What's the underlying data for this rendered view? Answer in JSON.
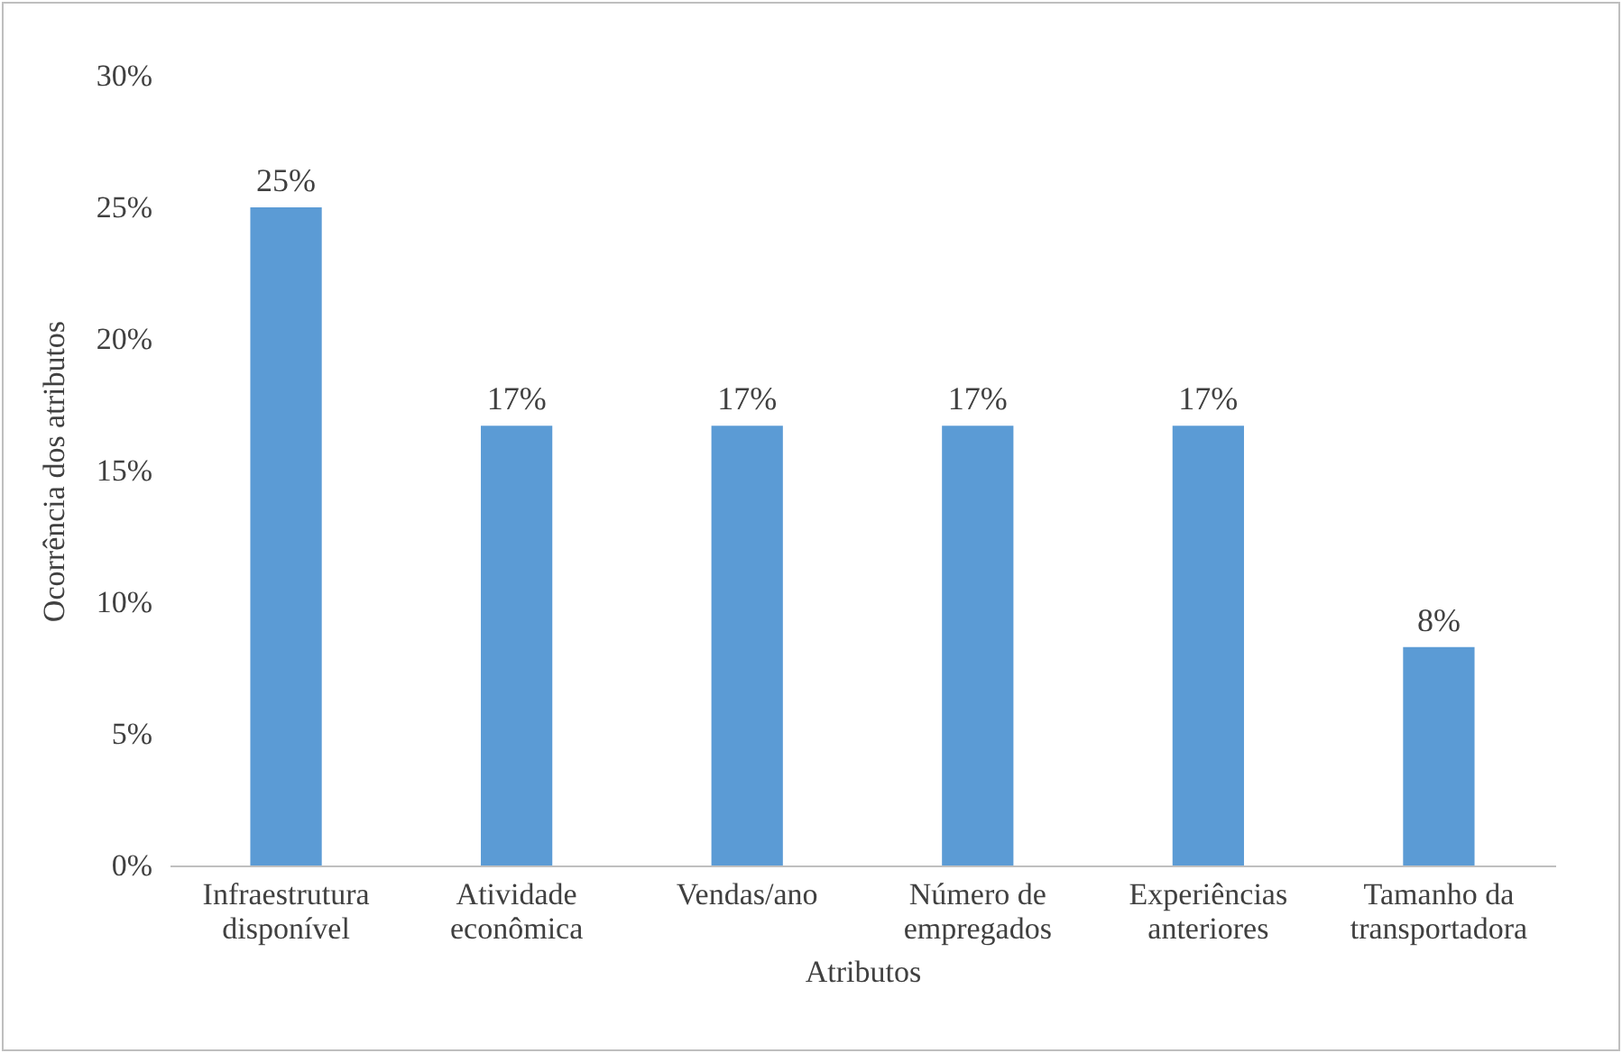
{
  "chart_data": {
    "type": "bar",
    "xlabel": "Atributos",
    "ylabel": "Ocorrência dos atributos",
    "categories": [
      "Infraestrutura disponível",
      "Atividade econômica",
      "Vendas/ano",
      "Número de empregados",
      "Experiências anteriores",
      "Tamanho da transportadora"
    ],
    "values": [
      25,
      16.7,
      16.7,
      16.7,
      16.7,
      8.3
    ],
    "value_labels": [
      "25%",
      "17%",
      "17%",
      "17%",
      "17%",
      "8%"
    ],
    "color": "#5b9bd5",
    "ylim": [
      0,
      30
    ],
    "yticks": [
      {
        "value": 0,
        "label": "0%"
      },
      {
        "value": 5,
        "label": "5%"
      },
      {
        "value": 10,
        "label": "10%"
      },
      {
        "value": 15,
        "label": "15%"
      },
      {
        "value": 20,
        "label": "20%"
      },
      {
        "value": 25,
        "label": "25%"
      },
      {
        "value": 30,
        "label": "30%"
      }
    ],
    "grid": false
  }
}
